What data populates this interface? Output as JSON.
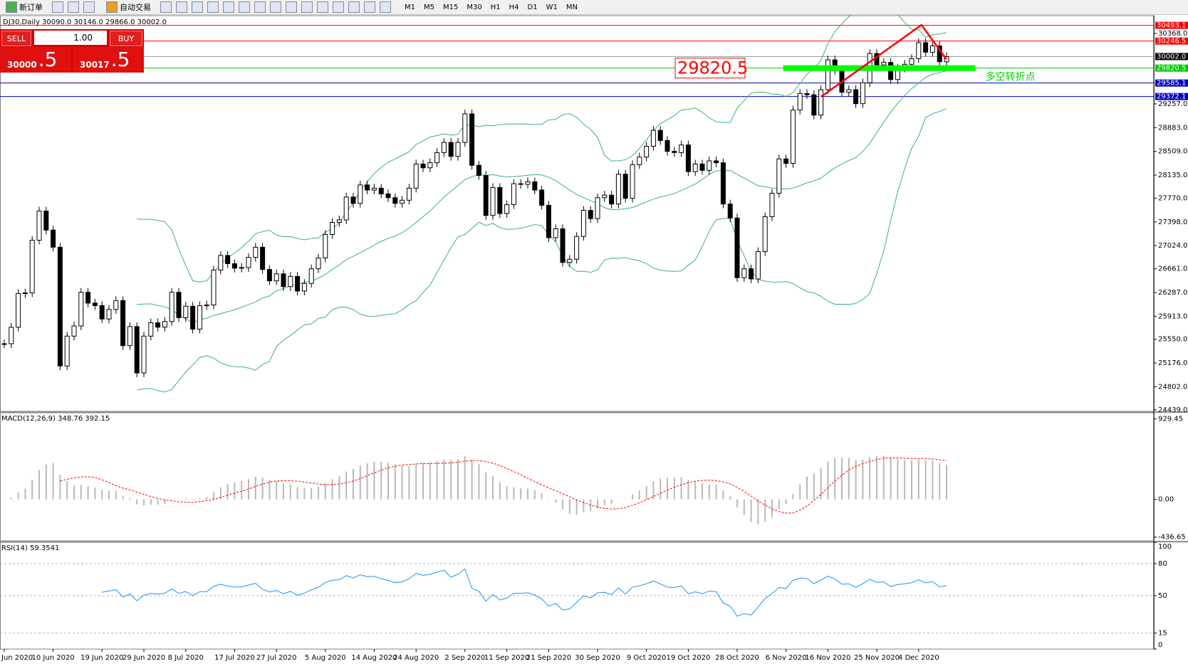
{
  "toolbar": {
    "new_order": "新订单",
    "auto_trading": "自动交易",
    "timeframes": [
      "M1",
      "M5",
      "M15",
      "M30",
      "H1",
      "H4",
      "D1",
      "W1",
      "MN"
    ]
  },
  "trade_panel": {
    "sell": "SELL",
    "buy": "BUY",
    "lot": "1.00",
    "bid_main": "30000",
    "bid_frac": ".5",
    "ask_main": "30017",
    "ask_frac": ".5"
  },
  "chart": {
    "header": "DJ30,Daily  30090.0 30146.0 29866.0 30002.0",
    "ylim": [
      24415,
      30646
    ],
    "yticks": [
      {
        "value": 30368,
        "label": "30368.0"
      },
      {
        "value": 29257,
        "label": "29257.0"
      },
      {
        "value": 28883,
        "label": "28883.0"
      },
      {
        "value": 28509,
        "label": "28509.0"
      },
      {
        "value": 28135,
        "label": "28135.0"
      },
      {
        "value": 27770,
        "label": "27770.0"
      },
      {
        "value": 27398,
        "label": "27398.0"
      },
      {
        "value": 27024,
        "label": "27024.0"
      },
      {
        "value": 26661,
        "label": "26661.0"
      },
      {
        "value": 26287,
        "label": "26287.0"
      },
      {
        "value": 25913,
        "label": "25913.0"
      },
      {
        "value": 25550,
        "label": "25550.0"
      },
      {
        "value": 25176,
        "label": "25176.0"
      },
      {
        "value": 24802,
        "label": "24802.0"
      },
      {
        "value": 24439,
        "label": "24439.0"
      }
    ],
    "levels": [
      {
        "value": 30493.1,
        "label": "30493.1",
        "color": "#ff0000"
      },
      {
        "value": 30246.5,
        "label": "30246.5",
        "color": "#ff0000"
      },
      {
        "value": 30002,
        "label": "30002.0",
        "color": "#000000"
      },
      {
        "value": 29820.5,
        "label": "29820.5",
        "color": "#00c800"
      },
      {
        "value": 29585.1,
        "label": "29585.1",
        "color": "#0000c0"
      },
      {
        "value": 29372.1,
        "label": "29372.1",
        "color": "#0000c0"
      }
    ],
    "annotation": {
      "value": 29820.5,
      "label": "29820.5",
      "note": "多空转折点"
    },
    "categories": [
      "Jun 2020",
      null,
      null,
      null,
      null,
      null,
      null,
      "10 Jun 2020",
      null,
      null,
      null,
      null,
      null,
      null,
      "19 Jun 2020",
      null,
      null,
      null,
      null,
      null,
      "29 Jun 2020",
      null,
      null,
      null,
      null,
      null,
      "8 Jul 2020",
      null,
      null,
      null,
      null,
      null,
      null,
      "17 Jul 2020",
      null,
      null,
      null,
      null,
      null,
      "27 Jul 2020",
      null,
      null,
      null,
      null,
      null,
      null,
      "5 Aug 2020",
      null,
      null,
      null,
      null,
      null,
      null,
      "14 Aug 2020",
      null,
      null,
      null,
      null,
      null,
      "24 Aug 2020",
      null,
      null,
      null,
      null,
      null,
      null,
      "2 Sep 2020",
      null,
      null,
      null,
      null,
      null,
      "11 Sep 2020",
      null,
      null,
      null,
      null,
      null,
      "21 Sep 2020",
      null,
      null,
      null,
      null,
      null,
      null,
      "30 Sep 2020",
      null,
      null,
      null,
      null,
      null,
      null,
      "9 Oct 2020",
      null,
      null,
      null,
      null,
      null,
      "19 Oct 2020",
      null,
      null,
      null,
      null,
      null,
      null,
      "28 Oct 2020",
      null,
      null,
      null,
      null,
      null,
      null,
      "6 Nov 2020",
      null,
      null,
      null,
      null,
      null,
      "16 Nov 2020",
      null,
      null,
      null,
      null,
      null,
      null,
      "25 Nov 2020",
      null,
      null,
      null,
      null,
      null,
      "4 Dec 2020",
      null,
      null,
      null,
      null
    ],
    "closes": [
      25480,
      25740,
      26270,
      26280,
      27110,
      27570,
      27270,
      27000,
      25130,
      25600,
      25760,
      26290,
      26120,
      26080,
      25870,
      26020,
      26160,
      25450,
      25750,
      25020,
      25600,
      25810,
      25740,
      25830,
      26290,
      25890,
      26070,
      25710,
      26080,
      26090,
      26640,
      26870,
      26740,
      26670,
      26680,
      26840,
      27000,
      26650,
      26470,
      26580,
      26380,
      26540,
      26310,
      26430,
      26660,
      26830,
      27200,
      27390,
      27430,
      27790,
      27690,
      27980,
      27900,
      27930,
      27840,
      27780,
      27690,
      27740,
      27930,
      28310,
      28250,
      28330,
      28490,
      28650,
      28430,
      28650,
      29100,
      28290,
      28130,
      27500,
      27940,
      27530,
      27670,
      28000,
      27990,
      28030,
      27900,
      27660,
      27150,
      27290,
      26760,
      26810,
      27170,
      27580,
      27450,
      27780,
      27820,
      27680,
      28150,
      27770,
      28300,
      28420,
      28590,
      28840,
      28680,
      28510,
      28490,
      28610,
      28190,
      28310,
      28210,
      28360,
      28330,
      27680,
      27460,
      26520,
      26660,
      26500,
      26930,
      27480,
      27850,
      28390,
      28320,
      29160,
      29420,
      29400,
      29080,
      29480,
      29950,
      29780,
      29440,
      29480,
      29260,
      29590,
      30050,
      29870,
      29910,
      29640,
      29820,
      29880,
      29970,
      30220,
      30070,
      30170,
      29920,
      30002
    ],
    "macd": {
      "header": "MACD(12,26,9) 348.76 392.15",
      "ylim": [
        -480,
        1000
      ],
      "yticks": [
        929.45,
        {
          "value": 0,
          "label": "0.00"
        },
        -436.65
      ]
    },
    "rsi": {
      "header": "RSI(14) 59.3541",
      "ylim": [
        0,
        100
      ],
      "yticks": [
        100,
        80,
        50,
        15,
        0
      ]
    }
  }
}
